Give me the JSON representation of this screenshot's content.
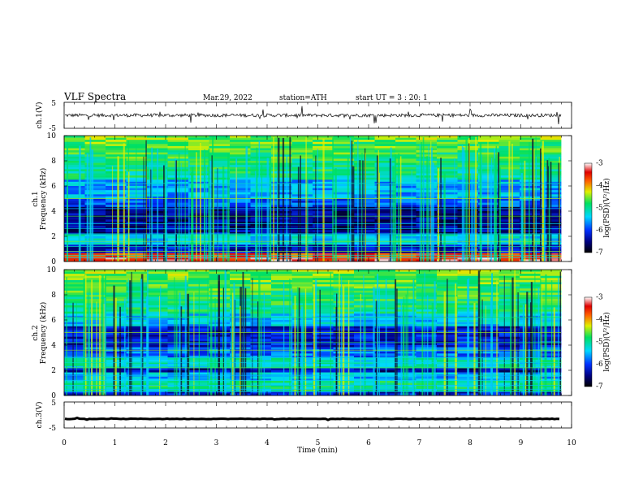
{
  "header": {
    "title": "VLF  Spectra",
    "date": "Mar.29, 2022",
    "station": "station=ATH",
    "start": "start  UT  =    3  : 20: 1"
  },
  "colors": {
    "spectrum_low": "#000033",
    "spectrum_mid": "#00e0e0",
    "spectrum_high": "#ff0000",
    "trace": "#000000"
  },
  "chart_data": [
    {
      "type": "line",
      "panel": "ch1-waveform",
      "ylabel": "ch.1(V)",
      "xlim": [
        0,
        10
      ],
      "ylim": [
        -5,
        5
      ],
      "yticks": [
        "5",
        "-5"
      ],
      "level": 0,
      "amplitude": 1.3
    },
    {
      "type": "heatmap",
      "panel": "ch1-spectrogram",
      "ylabel": "ch.1\nFrequency  (kHz)",
      "ylabel_top": "ch.1",
      "ylabel_bottom": "Frequency  (kHz)",
      "xlim": [
        0,
        10
      ],
      "ylim": [
        0,
        10
      ],
      "yticks": [
        "0",
        "2",
        "4",
        "6",
        "8",
        "10"
      ],
      "colorbar": {
        "label": "log(PSD)(V²/Hz)",
        "ticks": [
          "-3",
          "-4",
          "-5",
          "-6",
          "-7"
        ],
        "range": [
          -7,
          -3
        ]
      }
    },
    {
      "type": "heatmap",
      "panel": "ch2-spectrogram",
      "ylabel_top": "ch.2",
      "ylabel_bottom": "Frequency  (kHz)",
      "xlim": [
        0,
        10
      ],
      "ylim": [
        0,
        10
      ],
      "yticks": [
        "0",
        "2",
        "4",
        "6",
        "8",
        "10"
      ],
      "colorbar": {
        "label": "log(PSD)(V²/Hz)",
        "ticks": [
          "-3",
          "-4",
          "-5",
          "-6",
          "-7"
        ],
        "range": [
          -7,
          -3
        ]
      }
    },
    {
      "type": "line",
      "panel": "ch3-waveform",
      "ylabel": "ch.3(V)",
      "xlim": [
        0,
        10
      ],
      "ylim": [
        -5,
        5
      ],
      "yticks": [
        "5",
        "-5"
      ],
      "level": -1.5,
      "amplitude": 0.2
    }
  ],
  "xaxis": {
    "label": "Time  (min)",
    "ticks": [
      "0",
      "1",
      "2",
      "3",
      "4",
      "5",
      "6",
      "7",
      "8",
      "9",
      "10"
    ]
  }
}
